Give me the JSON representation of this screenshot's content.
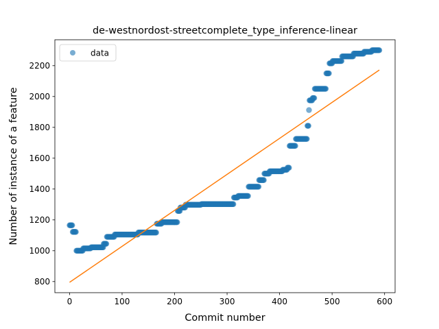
{
  "chart_data": {
    "type": "scatter",
    "title": "de-westnordost-streetcomplete_type_inference-linear",
    "xlabel": "Commit number",
    "ylabel": "Number of instance of a feature",
    "xlim": [
      -28,
      620
    ],
    "ylim": [
      728,
      2368
    ],
    "x_ticks": [
      0,
      100,
      200,
      300,
      400,
      500,
      600
    ],
    "y_ticks": [
      800,
      1000,
      1200,
      1400,
      1600,
      1800,
      2000,
      2200
    ],
    "grid": false,
    "legend_position": "top-left",
    "colors": {
      "data": "#1f77b4",
      "fit": "#ff7f0e"
    },
    "series": [
      {
        "name": "data",
        "kind": "scatter",
        "segments": [
          {
            "x0": 0,
            "x1": 5,
            "y": 1165
          },
          {
            "x0": 6,
            "x1": 12,
            "y": 1122
          },
          {
            "x0": 13,
            "x1": 25,
            "y": 1000
          },
          {
            "x0": 26,
            "x1": 40,
            "y": 1015
          },
          {
            "x0": 41,
            "x1": 64,
            "y": 1022
          },
          {
            "x0": 65,
            "x1": 70,
            "y": 1045
          },
          {
            "x0": 71,
            "x1": 85,
            "y": 1090
          },
          {
            "x0": 86,
            "x1": 130,
            "y": 1105
          },
          {
            "x0": 131,
            "x1": 165,
            "y": 1118
          },
          {
            "x0": 166,
            "x1": 175,
            "y": 1175
          },
          {
            "x0": 176,
            "x1": 205,
            "y": 1185
          },
          {
            "x0": 206,
            "x1": 210,
            "y": 1258
          },
          {
            "x0": 211,
            "x1": 220,
            "y": 1280
          },
          {
            "x0": 221,
            "x1": 250,
            "y": 1298
          },
          {
            "x0": 251,
            "x1": 312,
            "y": 1302
          },
          {
            "x0": 313,
            "x1": 320,
            "y": 1345
          },
          {
            "x0": 321,
            "x1": 340,
            "y": 1355
          },
          {
            "x0": 341,
            "x1": 360,
            "y": 1415
          },
          {
            "x0": 361,
            "x1": 370,
            "y": 1458
          },
          {
            "x0": 371,
            "x1": 380,
            "y": 1500
          },
          {
            "x0": 381,
            "x1": 405,
            "y": 1515
          },
          {
            "x0": 406,
            "x1": 414,
            "y": 1525
          },
          {
            "x0": 415,
            "x1": 418,
            "y": 1538
          },
          {
            "x0": 419,
            "x1": 430,
            "y": 1680
          },
          {
            "x0": 431,
            "x1": 452,
            "y": 1725
          },
          {
            "x0": 453,
            "x1": 455,
            "y": 1810
          },
          {
            "x0": 456,
            "x1": 456,
            "y": 1912
          },
          {
            "x0": 457,
            "x1": 462,
            "y": 1975
          },
          {
            "x0": 463,
            "x1": 466,
            "y": 1990
          },
          {
            "x0": 467,
            "x1": 488,
            "y": 2050
          },
          {
            "x0": 489,
            "x1": 494,
            "y": 2150
          },
          {
            "x0": 495,
            "x1": 500,
            "y": 2215
          },
          {
            "x0": 501,
            "x1": 518,
            "y": 2230
          },
          {
            "x0": 519,
            "x1": 540,
            "y": 2260
          },
          {
            "x0": 541,
            "x1": 560,
            "y": 2278
          },
          {
            "x0": 561,
            "x1": 575,
            "y": 2290
          },
          {
            "x0": 576,
            "x1": 590,
            "y": 2300
          }
        ]
      },
      {
        "kind": "line",
        "x": [
          0,
          590
        ],
        "y": [
          795,
          2172
        ]
      }
    ]
  }
}
